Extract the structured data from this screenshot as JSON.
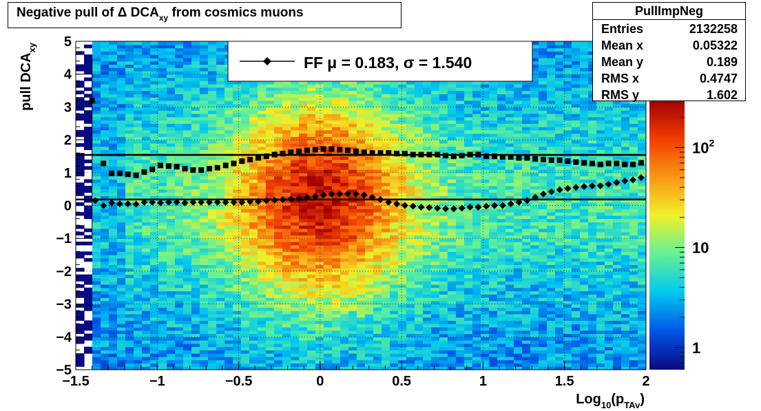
{
  "title": {
    "main": "Negative pull of Δ DCA",
    "sub": "xy",
    "suffix": " from cosmics muons"
  },
  "stats": {
    "name": "PullImpNeg",
    "rows": [
      {
        "key": "Entries",
        "value": "2132258"
      },
      {
        "key": "Mean x",
        "value": "0.05322"
      },
      {
        "key": "Mean y",
        "value": "0.189"
      },
      {
        "key": "RMS x",
        "value": "0.4747"
      },
      {
        "key": "RMS y",
        "value": "1.602"
      }
    ]
  },
  "legend": {
    "label": "FF",
    "text": "μ =  0.183, σ =   1.540"
  },
  "colorbar": {
    "ticks": [
      {
        "value": 1,
        "label": "1"
      },
      {
        "value": 10,
        "label": "10"
      },
      {
        "value": 100,
        "label": "10",
        "sup": "2"
      }
    ],
    "range": [
      0.6,
      300
    ],
    "scale": "log",
    "palette": [
      "#0a0a82",
      "#0055e6",
      "#00c8f0",
      "#64f096",
      "#f0f028",
      "#fa9614",
      "#f03c00",
      "#a00000"
    ]
  },
  "chart_data": {
    "type": "heatmap",
    "title": "Negative pull of Δ DCA xy from cosmics muons",
    "xlabel": "Log10(pTAv)",
    "xlabel_parts": {
      "base": "Log",
      "sub1": "10",
      "mid": "(p",
      "sub2": "TAv",
      "end": ")"
    },
    "ylabel": "pull DCA",
    "ylabel_sub": "xy",
    "xlim": [
      -1.5,
      2
    ],
    "ylim": [
      -5,
      5
    ],
    "xticks": [
      -1.5,
      -1,
      -0.5,
      0,
      0.5,
      1,
      1.5,
      2
    ],
    "xtick_labels": [
      "−1.5",
      "−1",
      "−0.5",
      "0",
      "0.5",
      "1",
      "1.5",
      "2"
    ],
    "yticks": [
      -5,
      -4,
      -3,
      -2,
      -1,
      0,
      1,
      2,
      3,
      4,
      5
    ],
    "ytick_labels": [
      "−5",
      "−4",
      "−3",
      "−2",
      "−1",
      "0",
      "1",
      "2",
      "3",
      "4",
      "5"
    ],
    "grid": true,
    "fit_lines": {
      "mean": 0.183,
      "sigma": 1.54
    },
    "series": [
      {
        "name": "mean",
        "marker": "diamond",
        "x": [
          -1.38,
          -1.33,
          -1.28,
          -1.23,
          -1.18,
          -1.13,
          -1.08,
          -1.03,
          -0.98,
          -0.93,
          -0.88,
          -0.83,
          -0.78,
          -0.73,
          -0.68,
          -0.63,
          -0.58,
          -0.53,
          -0.48,
          -0.43,
          -0.38,
          -0.33,
          -0.28,
          -0.23,
          -0.18,
          -0.13,
          -0.08,
          -0.03,
          0.02,
          0.07,
          0.12,
          0.17,
          0.22,
          0.27,
          0.32,
          0.37,
          0.42,
          0.47,
          0.52,
          0.57,
          0.62,
          0.67,
          0.72,
          0.77,
          0.82,
          0.87,
          0.92,
          0.97,
          1.02,
          1.07,
          1.12,
          1.17,
          1.22,
          1.27,
          1.32,
          1.37,
          1.42,
          1.47,
          1.52,
          1.57,
          1.62,
          1.67,
          1.72,
          1.77,
          1.82,
          1.87,
          1.92,
          1.97
        ],
        "y": [
          0.15,
          0.0,
          0.08,
          0.05,
          0.05,
          0.04,
          0.1,
          0.1,
          0.08,
          0.1,
          0.1,
          0.08,
          0.1,
          0.1,
          0.1,
          0.1,
          0.1,
          0.1,
          0.1,
          0.12,
          0.12,
          0.15,
          0.16,
          0.18,
          0.2,
          0.22,
          0.25,
          0.28,
          0.32,
          0.35,
          0.36,
          0.36,
          0.35,
          0.32,
          0.25,
          0.18,
          0.1,
          0.05,
          0.0,
          -0.02,
          -0.05,
          -0.06,
          -0.08,
          -0.1,
          -0.1,
          -0.08,
          -0.05,
          -0.05,
          -0.02,
          0.0,
          0.0,
          0.05,
          0.1,
          0.15,
          0.25,
          0.35,
          0.42,
          0.48,
          0.52,
          0.55,
          0.58,
          0.6,
          0.6,
          0.65,
          0.7,
          0.75,
          0.78,
          0.85
        ],
        "outlier": {
          "x": -1.4,
          "y": 3.2
        }
      },
      {
        "name": "sigma",
        "marker": "square",
        "x": [
          -1.33,
          -1.28,
          -1.23,
          -1.18,
          -1.13,
          -1.08,
          -1.03,
          -0.98,
          -0.93,
          -0.88,
          -0.83,
          -0.78,
          -0.73,
          -0.68,
          -0.63,
          -0.58,
          -0.53,
          -0.48,
          -0.43,
          -0.38,
          -0.33,
          -0.28,
          -0.23,
          -0.18,
          -0.13,
          -0.08,
          -0.03,
          0.02,
          0.07,
          0.12,
          0.17,
          0.22,
          0.27,
          0.32,
          0.37,
          0.42,
          0.47,
          0.52,
          0.57,
          0.62,
          0.67,
          0.72,
          0.77,
          0.82,
          0.87,
          0.92,
          0.97,
          1.02,
          1.07,
          1.12,
          1.17,
          1.22,
          1.27,
          1.32,
          1.37,
          1.42,
          1.47,
          1.52,
          1.57,
          1.62,
          1.67,
          1.72,
          1.77,
          1.82,
          1.87,
          1.92,
          1.97
        ],
        "y": [
          1.28,
          0.98,
          0.98,
          0.95,
          0.92,
          1.02,
          1.1,
          1.22,
          1.2,
          1.18,
          1.12,
          1.08,
          1.08,
          1.12,
          1.15,
          1.22,
          1.28,
          1.35,
          1.4,
          1.45,
          1.5,
          1.55,
          1.58,
          1.62,
          1.65,
          1.68,
          1.7,
          1.72,
          1.72,
          1.7,
          1.68,
          1.65,
          1.62,
          1.6,
          1.6,
          1.6,
          1.58,
          1.58,
          1.55,
          1.55,
          1.55,
          1.55,
          1.52,
          1.5,
          1.52,
          1.55,
          1.55,
          1.5,
          1.5,
          1.48,
          1.48,
          1.45,
          1.45,
          1.42,
          1.4,
          1.38,
          1.38,
          1.35,
          1.32,
          1.3,
          1.28,
          1.25,
          1.28,
          1.28,
          1.25,
          1.25,
          1.3
        ]
      }
    ]
  }
}
